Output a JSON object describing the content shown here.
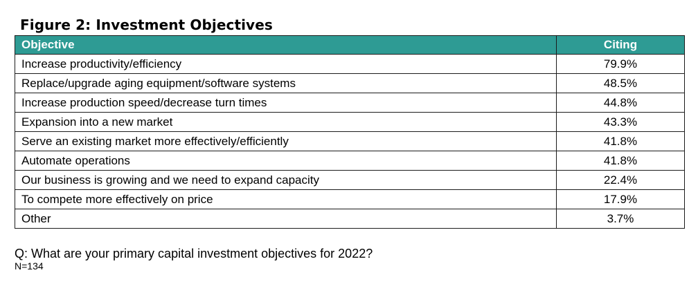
{
  "title": "Figure 2: Investment Objectives",
  "header_color": "#2e9b94",
  "table": {
    "headers": [
      "Objective",
      "Citing"
    ]
  },
  "chart_data": {
    "type": "table",
    "title": "Figure 2: Investment Objectives",
    "columns": [
      "Objective",
      "Citing"
    ],
    "rows": [
      {
        "objective": "Increase productivity/efficiency",
        "citing": "79.9%",
        "value": 79.9
      },
      {
        "objective": "Replace/upgrade aging equipment/software systems",
        "citing": "48.5%",
        "value": 48.5
      },
      {
        "objective": "Increase production speed/decrease turn times",
        "citing": "44.8%",
        "value": 44.8
      },
      {
        "objective": "Expansion into a new market",
        "citing": "43.3%",
        "value": 43.3
      },
      {
        "objective": "Serve an existing market more effectively/efficiently",
        "citing": "41.8%",
        "value": 41.8
      },
      {
        "objective": "Automate operations",
        "citing": "41.8%",
        "value": 41.8
      },
      {
        "objective": "Our business is growing and we need to expand capacity",
        "citing": "22.4%",
        "value": 22.4
      },
      {
        "objective": "To compete more effectively on price",
        "citing": "17.9%",
        "value": 17.9
      },
      {
        "objective": "Other",
        "citing": "3.7%",
        "value": 3.7
      }
    ]
  },
  "footnote": {
    "question": "Q: What are your primary capital investment objectives for 2022?",
    "sample": "N=134"
  }
}
